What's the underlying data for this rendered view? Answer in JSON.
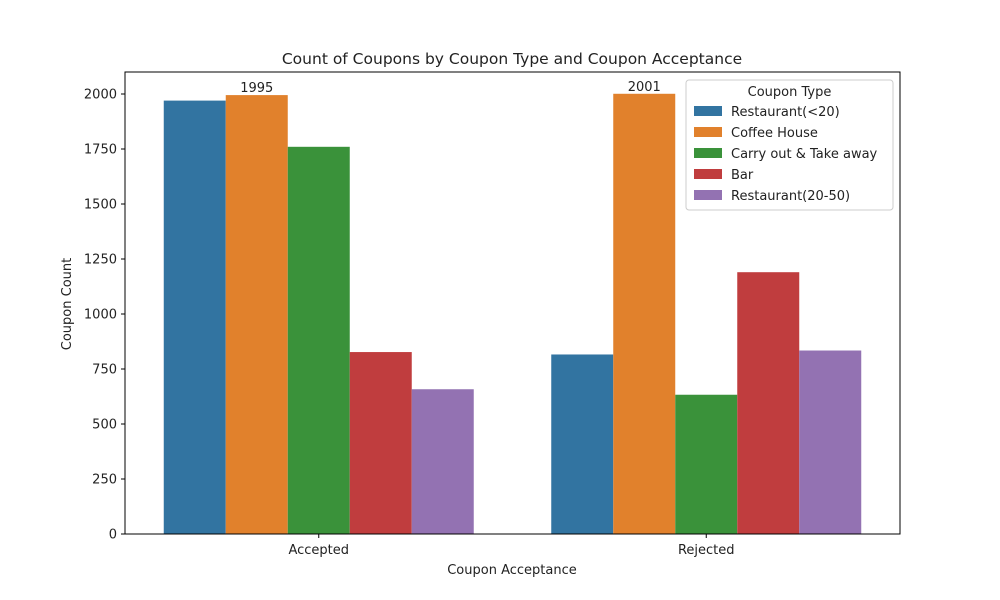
{
  "chart_data": {
    "type": "bar",
    "title": "Count of Coupons by Coupon Type and Coupon Acceptance",
    "xlabel": "Coupon Acceptance",
    "ylabel": "Coupon Count",
    "categories": [
      "Accepted",
      "Rejected"
    ],
    "ylim": [
      0,
      2100
    ],
    "yticks": [
      0,
      250,
      500,
      750,
      1000,
      1250,
      1500,
      1750,
      2000
    ],
    "grid": false,
    "legend": {
      "title": "Coupon Type",
      "placement": "top-right"
    },
    "series": [
      {
        "name": "Restaurant(<20)",
        "color": "#3274a1",
        "values": [
          1970,
          816
        ]
      },
      {
        "name": "Coffee House",
        "color": "#e1812c",
        "values": [
          1995,
          2001
        ]
      },
      {
        "name": "Carry out & Take away",
        "color": "#3a923a",
        "values": [
          1760,
          633
        ]
      },
      {
        "name": "Bar",
        "color": "#c03d3e",
        "values": [
          827,
          1190
        ]
      },
      {
        "name": "Restaurant(20-50)",
        "color": "#9372b2",
        "values": [
          658,
          834
        ]
      }
    ],
    "data_labels": [
      {
        "series": "Coffee House",
        "category": "Accepted",
        "text": "1995"
      },
      {
        "series": "Coffee House",
        "category": "Rejected",
        "text": "2001"
      }
    ]
  }
}
